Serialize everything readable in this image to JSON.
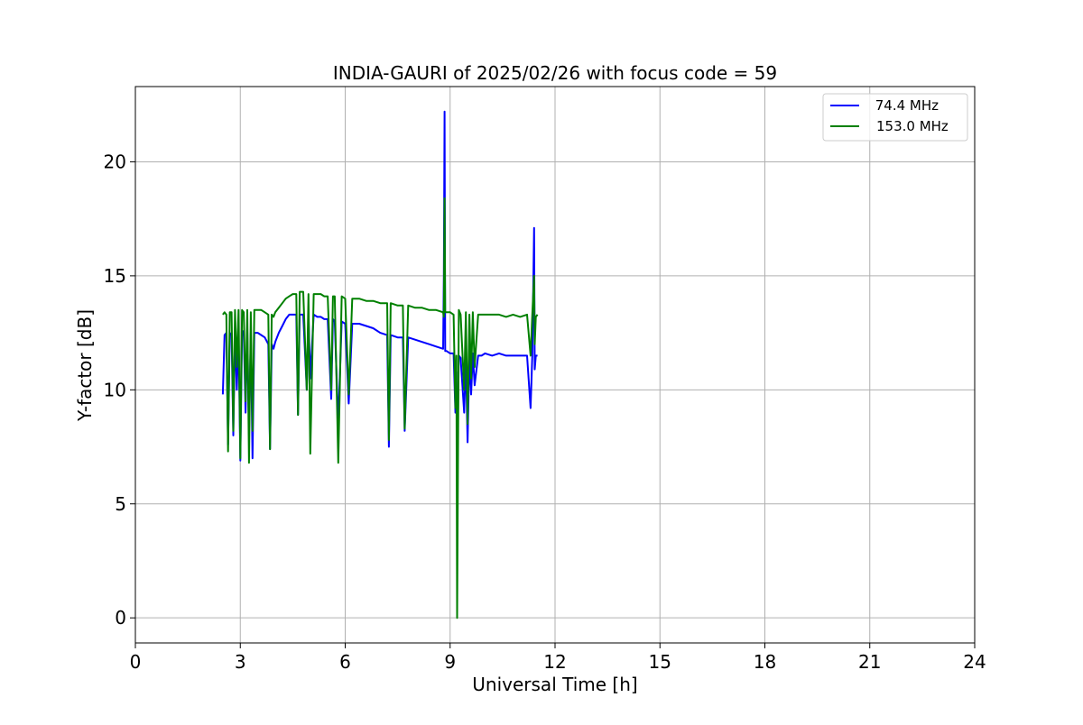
{
  "chart_data": {
    "type": "line",
    "title": "INDIA-GAURI of 2025/02/26 with focus code = 59",
    "xlabel": "Universal Time [h]",
    "ylabel": "Y-factor [dB]",
    "xlim": [
      0,
      24
    ],
    "ylim": [
      -1.1,
      23.3
    ],
    "xticks": [
      0,
      3,
      6,
      9,
      12,
      15,
      18,
      21,
      24
    ],
    "yticks": [
      0,
      5,
      10,
      15,
      20
    ],
    "grid": true,
    "legend_position": "top-right",
    "series": [
      {
        "name": " 74.4 MHz",
        "color": "#0000ff",
        "x": [
          2.5,
          2.55,
          2.6,
          2.65,
          2.7,
          2.75,
          2.8,
          2.85,
          2.9,
          2.95,
          3.0,
          3.05,
          3.1,
          3.15,
          3.2,
          3.25,
          3.3,
          3.35,
          3.4,
          3.5,
          3.6,
          3.7,
          3.8,
          3.85,
          3.9,
          3.95,
          4.0,
          4.1,
          4.2,
          4.3,
          4.4,
          4.5,
          4.6,
          4.65,
          4.7,
          4.8,
          4.9,
          4.95,
          5.0,
          5.1,
          5.2,
          5.3,
          5.4,
          5.5,
          5.6,
          5.65,
          5.7,
          5.8,
          5.9,
          6.0,
          6.1,
          6.2,
          6.4,
          6.6,
          6.8,
          7.0,
          7.2,
          7.25,
          7.3,
          7.5,
          7.65,
          7.7,
          7.8,
          8.0,
          8.2,
          8.4,
          8.6,
          8.8,
          8.82,
          8.84,
          8.86,
          8.9,
          9.0,
          9.1,
          9.15,
          9.18,
          9.2,
          9.25,
          9.3,
          9.4,
          9.45,
          9.5,
          9.55,
          9.6,
          9.65,
          9.7,
          9.8,
          9.9,
          10.0,
          10.2,
          10.4,
          10.6,
          10.8,
          11.0,
          11.2,
          11.3,
          11.35,
          11.4,
          11.42,
          11.45,
          11.5
        ],
        "y": [
          9.8,
          12.4,
          12.5,
          7.6,
          12.4,
          12.5,
          8.0,
          12.5,
          10.0,
          12.5,
          6.9,
          12.6,
          12.5,
          9.0,
          12.6,
          8.0,
          12.5,
          7.0,
          12.5,
          12.5,
          12.4,
          12.3,
          12.0,
          7.4,
          12.0,
          11.8,
          12.1,
          12.5,
          12.8,
          13.1,
          13.3,
          13.3,
          13.3,
          8.9,
          13.3,
          13.3,
          10.0,
          13.3,
          10.5,
          13.3,
          13.2,
          13.2,
          13.1,
          13.1,
          9.6,
          13.1,
          13.0,
          8.5,
          13.0,
          12.9,
          9.4,
          12.9,
          12.9,
          12.8,
          12.7,
          12.5,
          12.4,
          7.5,
          12.4,
          12.3,
          12.3,
          8.2,
          12.3,
          12.2,
          12.1,
          12.0,
          11.9,
          11.8,
          15.0,
          22.2,
          11.7,
          11.7,
          11.6,
          11.6,
          9.0,
          10.8,
          6.3,
          11.5,
          11.4,
          9.0,
          11.4,
          7.7,
          11.5,
          9.8,
          11.6,
          10.2,
          11.5,
          11.5,
          11.6,
          11.5,
          11.6,
          11.5,
          11.5,
          11.5,
          11.5,
          9.2,
          11.5,
          17.1,
          10.9,
          11.5,
          11.5
        ]
      },
      {
        "name": "153.0 MHz",
        "color": "#008000",
        "x": [
          2.5,
          2.55,
          2.6,
          2.65,
          2.7,
          2.75,
          2.8,
          2.85,
          2.9,
          2.95,
          3.0,
          3.05,
          3.1,
          3.15,
          3.2,
          3.25,
          3.3,
          3.35,
          3.4,
          3.5,
          3.6,
          3.7,
          3.8,
          3.85,
          3.9,
          3.95,
          4.0,
          4.1,
          4.2,
          4.3,
          4.4,
          4.5,
          4.6,
          4.65,
          4.7,
          4.8,
          4.9,
          4.95,
          5.0,
          5.1,
          5.2,
          5.3,
          5.4,
          5.5,
          5.6,
          5.65,
          5.7,
          5.8,
          5.9,
          6.0,
          6.1,
          6.2,
          6.4,
          6.6,
          6.8,
          7.0,
          7.2,
          7.25,
          7.3,
          7.5,
          7.65,
          7.7,
          7.8,
          8.0,
          8.2,
          8.4,
          8.6,
          8.8,
          8.82,
          8.84,
          8.86,
          8.9,
          9.0,
          9.1,
          9.15,
          9.18,
          9.2,
          9.25,
          9.3,
          9.4,
          9.45,
          9.5,
          9.55,
          9.6,
          9.65,
          9.7,
          9.8,
          9.9,
          10.0,
          10.2,
          10.4,
          10.6,
          10.8,
          11.0,
          11.2,
          11.3,
          11.35,
          11.4,
          11.42,
          11.45,
          11.5
        ],
        "y": [
          13.3,
          13.4,
          13.3,
          7.3,
          13.4,
          13.4,
          8.2,
          13.5,
          11.0,
          13.5,
          7.0,
          13.5,
          13.4,
          9.5,
          13.5,
          6.8,
          13.4,
          8.2,
          13.5,
          13.5,
          13.5,
          13.4,
          13.3,
          7.4,
          13.3,
          13.2,
          13.4,
          13.6,
          13.8,
          14.0,
          14.1,
          14.2,
          14.2,
          8.9,
          14.3,
          14.3,
          10.0,
          14.2,
          7.2,
          14.2,
          14.2,
          14.2,
          14.1,
          14.1,
          10.0,
          14.1,
          14.1,
          6.8,
          14.1,
          14.0,
          9.8,
          14.0,
          14.0,
          13.9,
          13.9,
          13.8,
          13.8,
          7.8,
          13.8,
          13.7,
          13.7,
          8.3,
          13.7,
          13.6,
          13.6,
          13.5,
          13.5,
          13.4,
          13.2,
          18.4,
          13.4,
          13.4,
          13.4,
          13.3,
          9.2,
          11.5,
          0.0,
          13.5,
          13.3,
          10.0,
          13.4,
          8.5,
          13.3,
          10.5,
          13.4,
          11.0,
          13.3,
          13.3,
          13.3,
          13.3,
          13.3,
          13.2,
          13.3,
          13.2,
          13.3,
          11.5,
          13.3,
          15.0,
          12.0,
          13.2,
          13.3
        ]
      }
    ]
  }
}
